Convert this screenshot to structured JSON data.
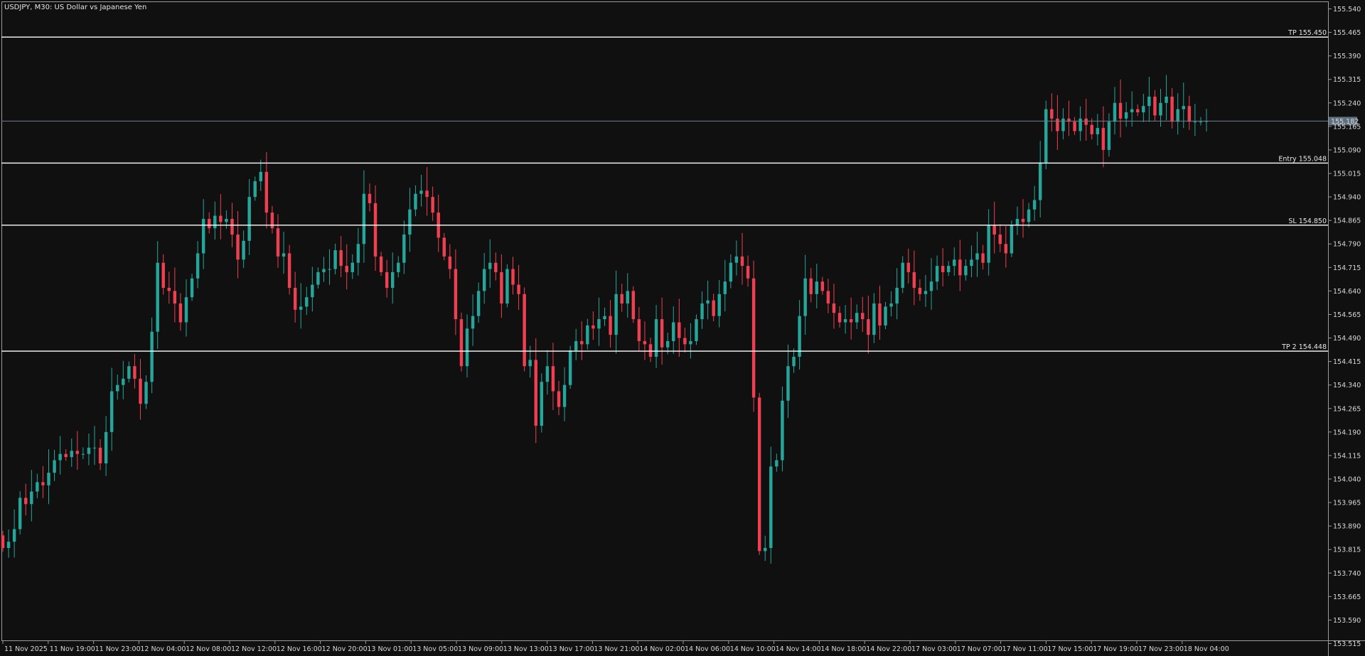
{
  "chart_data": {
    "type": "candlestick",
    "symbol": "USDJPY",
    "timeframe": "M30",
    "title": "USDJPY, M30:  US Dollar vs Japanese Yen",
    "colors": {
      "background": "#101010",
      "bull": "#26a69a",
      "bear": "#ef4052",
      "text": "#d8d8d8",
      "level_line": "#ffffff",
      "bid_line": "#6f7f8f",
      "current_price_box": "#5f6f7f"
    },
    "ylim": [
      153.46,
      155.585
    ],
    "y_ticks": [
      "155.540",
      "155.465",
      "155.390",
      "155.315",
      "155.240",
      "155.165",
      "155.090",
      "155.015",
      "154.940",
      "154.865",
      "154.790",
      "154.715",
      "154.640",
      "154.565",
      "154.490",
      "154.415",
      "154.340",
      "154.265",
      "154.190",
      "154.115",
      "154.040",
      "153.965",
      "153.890",
      "153.815",
      "153.740",
      "153.665",
      "153.590",
      "153.515"
    ],
    "x_ticks": [
      "11 Nov 2025",
      "11 Nov 19:00",
      "11 Nov 23:00",
      "12 Nov 04:00",
      "12 Nov 08:00",
      "12 Nov 12:00",
      "12 Nov 16:00",
      "12 Nov 20:00",
      "13 Nov 01:00",
      "13 Nov 05:00",
      "13 Nov 09:00",
      "13 Nov 13:00",
      "13 Nov 17:00",
      "13 Nov 21:00",
      "14 Nov 02:00",
      "14 Nov 06:00",
      "14 Nov 10:00",
      "14 Nov 14:00",
      "14 Nov 18:00",
      "14 Nov 22:00",
      "17 Nov 03:00",
      "17 Nov 07:00",
      "17 Nov 11:00",
      "17 Nov 15:00",
      "17 Nov 19:00",
      "17 Nov 23:00",
      "18 Nov 04:00"
    ],
    "levels": [
      {
        "label": "TP 155.450",
        "price": 155.45
      },
      {
        "label": "Entry 155.048",
        "price": 155.048
      },
      {
        "label": "SL 154.850",
        "price": 154.85
      },
      {
        "label": "TP 2 154.448",
        "price": 154.448
      }
    ],
    "current_price": {
      "label": "155.182",
      "price": 155.182
    },
    "candles_start": 153.86,
    "candles": [
      [
        153.86,
        153.82
      ],
      [
        153.82,
        153.84
      ],
      [
        153.84,
        153.88
      ],
      [
        153.88,
        153.98
      ],
      [
        153.98,
        153.96
      ],
      [
        153.96,
        154.0
      ],
      [
        154.0,
        154.03
      ],
      [
        154.03,
        154.02
      ],
      [
        154.02,
        154.06
      ],
      [
        154.06,
        154.1
      ],
      [
        154.1,
        154.12
      ],
      [
        154.12,
        154.11
      ],
      [
        154.11,
        154.13
      ],
      [
        154.13,
        154.12
      ],
      [
        154.12,
        154.12
      ],
      [
        154.12,
        154.14
      ],
      [
        154.14,
        154.14
      ],
      [
        154.14,
        154.09
      ],
      [
        154.09,
        154.19
      ],
      [
        154.19,
        154.32
      ],
      [
        154.32,
        154.34
      ],
      [
        154.34,
        154.36
      ],
      [
        154.36,
        154.4
      ],
      [
        154.4,
        154.36
      ],
      [
        154.36,
        154.28
      ],
      [
        154.28,
        154.35
      ],
      [
        154.35,
        154.51
      ],
      [
        154.51,
        154.73
      ],
      [
        154.73,
        154.65
      ],
      [
        154.65,
        154.64
      ],
      [
        154.64,
        154.6
      ],
      [
        154.6,
        154.54
      ],
      [
        154.54,
        154.62
      ],
      [
        154.62,
        154.68
      ],
      [
        154.68,
        154.76
      ],
      [
        154.76,
        154.87
      ],
      [
        154.87,
        154.84
      ],
      [
        154.84,
        154.88
      ],
      [
        154.88,
        154.86
      ],
      [
        154.86,
        154.87
      ],
      [
        154.87,
        154.82
      ],
      [
        154.82,
        154.74
      ],
      [
        154.74,
        154.8
      ],
      [
        154.8,
        154.94
      ],
      [
        154.94,
        154.99
      ],
      [
        154.99,
        155.02
      ],
      [
        155.02,
        154.89
      ],
      [
        154.89,
        154.84
      ],
      [
        154.84,
        154.75
      ],
      [
        154.75,
        154.76
      ],
      [
        154.76,
        154.65
      ],
      [
        154.65,
        154.58
      ],
      [
        154.58,
        154.59
      ],
      [
        154.59,
        154.62
      ],
      [
        154.62,
        154.66
      ],
      [
        154.66,
        154.7
      ],
      [
        154.7,
        154.71
      ],
      [
        154.71,
        154.71
      ],
      [
        154.71,
        154.77
      ],
      [
        154.77,
        154.72
      ],
      [
        154.72,
        154.7
      ],
      [
        154.7,
        154.73
      ],
      [
        154.73,
        154.79
      ],
      [
        154.79,
        154.95
      ],
      [
        154.95,
        154.92
      ],
      [
        154.92,
        154.75
      ],
      [
        154.75,
        154.7
      ],
      [
        154.7,
        154.65
      ],
      [
        154.65,
        154.7
      ],
      [
        154.7,
        154.73
      ],
      [
        154.73,
        154.82
      ],
      [
        154.82,
        154.9
      ],
      [
        154.9,
        154.95
      ],
      [
        154.95,
        154.96
      ],
      [
        154.96,
        154.94
      ],
      [
        154.94,
        154.89
      ],
      [
        154.89,
        154.81
      ],
      [
        154.81,
        154.75
      ],
      [
        154.75,
        154.71
      ],
      [
        154.71,
        154.55
      ],
      [
        154.55,
        154.4
      ],
      [
        154.4,
        154.52
      ],
      [
        154.52,
        154.56
      ],
      [
        154.56,
        154.64
      ],
      [
        154.64,
        154.71
      ],
      [
        154.71,
        154.73
      ],
      [
        154.73,
        154.7
      ],
      [
        154.7,
        154.6
      ],
      [
        154.6,
        154.71
      ],
      [
        154.71,
        154.66
      ],
      [
        154.66,
        154.63
      ],
      [
        154.63,
        154.4
      ],
      [
        154.4,
        154.42
      ],
      [
        154.42,
        154.21
      ],
      [
        154.21,
        154.35
      ],
      [
        154.35,
        154.4
      ],
      [
        154.4,
        154.32
      ],
      [
        154.32,
        154.27
      ],
      [
        154.27,
        154.34
      ],
      [
        154.34,
        154.45
      ],
      [
        154.45,
        154.48
      ],
      [
        154.48,
        154.47
      ],
      [
        154.47,
        154.53
      ],
      [
        154.53,
        154.52
      ],
      [
        154.52,
        154.55
      ],
      [
        154.55,
        154.56
      ],
      [
        154.56,
        154.5
      ],
      [
        154.5,
        154.63
      ],
      [
        154.63,
        154.6
      ],
      [
        154.6,
        154.64
      ],
      [
        154.64,
        154.55
      ],
      [
        154.55,
        154.48
      ],
      [
        154.48,
        154.47
      ],
      [
        154.47,
        154.43
      ],
      [
        154.43,
        154.55
      ],
      [
        154.55,
        154.46
      ],
      [
        154.46,
        154.48
      ],
      [
        154.48,
        154.54
      ],
      [
        154.54,
        154.49
      ],
      [
        154.49,
        154.47
      ],
      [
        154.47,
        154.48
      ],
      [
        154.48,
        154.55
      ],
      [
        154.55,
        154.6
      ],
      [
        154.6,
        154.61
      ],
      [
        154.61,
        154.56
      ],
      [
        154.56,
        154.63
      ],
      [
        154.63,
        154.67
      ],
      [
        154.67,
        154.73
      ],
      [
        154.73,
        154.75
      ],
      [
        154.75,
        154.72
      ],
      [
        154.72,
        154.68
      ],
      [
        154.68,
        154.3
      ],
      [
        154.3,
        153.81
      ],
      [
        153.81,
        153.82
      ],
      [
        153.82,
        154.08
      ],
      [
        154.08,
        154.1
      ],
      [
        154.1,
        154.29
      ],
      [
        154.29,
        154.4
      ],
      [
        154.4,
        154.43
      ],
      [
        154.43,
        154.56
      ],
      [
        154.56,
        154.68
      ],
      [
        154.68,
        154.63
      ],
      [
        154.63,
        154.67
      ],
      [
        154.67,
        154.64
      ],
      [
        154.64,
        154.6
      ],
      [
        154.6,
        154.57
      ],
      [
        154.57,
        154.54
      ],
      [
        154.54,
        154.55
      ],
      [
        154.55,
        154.54
      ],
      [
        154.54,
        154.57
      ],
      [
        154.57,
        154.55
      ],
      [
        154.55,
        154.5
      ],
      [
        154.5,
        154.6
      ],
      [
        154.6,
        154.53
      ],
      [
        154.53,
        154.59
      ],
      [
        154.59,
        154.6
      ],
      [
        154.6,
        154.65
      ],
      [
        154.65,
        154.73
      ],
      [
        154.73,
        154.7
      ],
      [
        154.7,
        154.65
      ],
      [
        154.65,
        154.63
      ],
      [
        154.63,
        154.64
      ],
      [
        154.64,
        154.67
      ],
      [
        154.67,
        154.72
      ],
      [
        154.72,
        154.7
      ],
      [
        154.7,
        154.72
      ],
      [
        154.72,
        154.74
      ],
      [
        154.74,
        154.69
      ],
      [
        154.69,
        154.72
      ],
      [
        154.72,
        154.74
      ],
      [
        154.74,
        154.76
      ],
      [
        154.76,
        154.73
      ],
      [
        154.73,
        154.85
      ],
      [
        154.85,
        154.82
      ],
      [
        154.82,
        154.79
      ],
      [
        154.79,
        154.76
      ],
      [
        154.76,
        154.85
      ],
      [
        154.85,
        154.87
      ],
      [
        154.87,
        154.86
      ],
      [
        154.86,
        154.9
      ],
      [
        154.9,
        154.93
      ],
      [
        154.93,
        155.05
      ],
      [
        155.05,
        155.22
      ],
      [
        155.22,
        155.19
      ],
      [
        155.19,
        155.15
      ],
      [
        155.15,
        155.19
      ],
      [
        155.19,
        155.18
      ],
      [
        155.18,
        155.15
      ],
      [
        155.15,
        155.19
      ],
      [
        155.19,
        155.17
      ],
      [
        155.17,
        155.14
      ],
      [
        155.14,
        155.16
      ],
      [
        155.16,
        155.09
      ],
      [
        155.09,
        155.18
      ],
      [
        155.18,
        155.24
      ],
      [
        155.24,
        155.19
      ],
      [
        155.19,
        155.21
      ],
      [
        155.21,
        155.22
      ],
      [
        155.22,
        155.21
      ],
      [
        155.21,
        155.23
      ],
      [
        155.23,
        155.26
      ],
      [
        155.26,
        155.2
      ],
      [
        155.2,
        155.24
      ],
      [
        155.24,
        155.26
      ],
      [
        155.26,
        155.18
      ],
      [
        155.18,
        155.22
      ],
      [
        155.22,
        155.23
      ],
      [
        155.23,
        155.18
      ],
      [
        155.18,
        155.18
      ],
      [
        155.18,
        155.18
      ],
      [
        155.18,
        155.182
      ]
    ]
  },
  "window": {
    "title": "USDJPY, M30:  US Dollar vs Japanese Yen"
  }
}
